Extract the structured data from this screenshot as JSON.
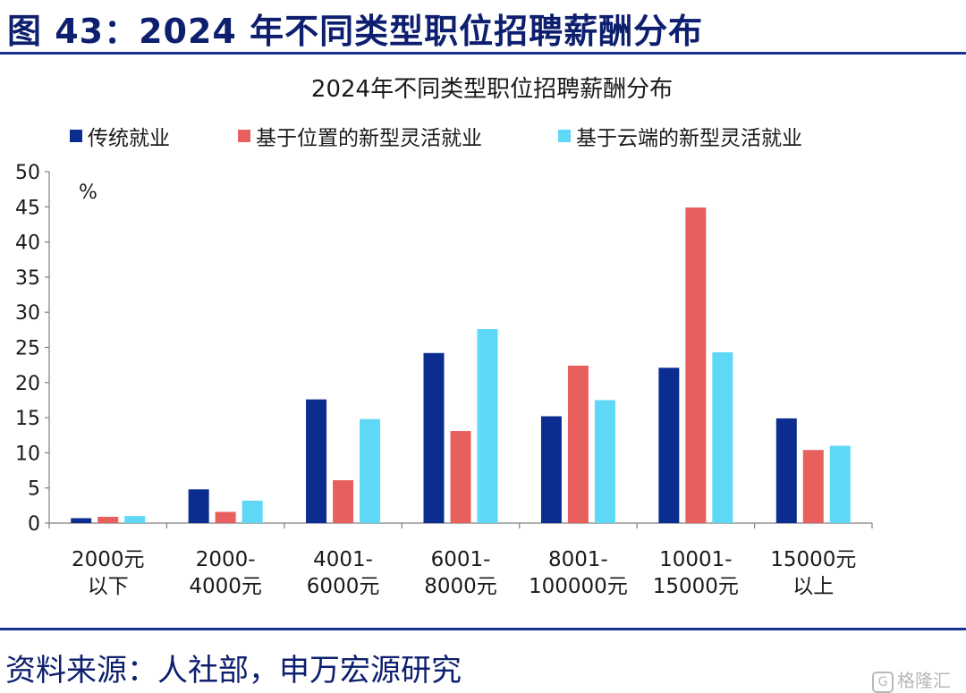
{
  "figure": {
    "label": "图 43：2024 年不同类型职位招聘薪酬分布",
    "source": "资料来源：人社部，申万宏源研究",
    "watermark": "格隆汇"
  },
  "chart_data": {
    "type": "bar",
    "title": "2024年不同类型职位招聘薪酬分布",
    "ylabel": "%",
    "xlabel": "",
    "ylim": [
      0,
      50
    ],
    "yticks": [
      0,
      5,
      10,
      15,
      20,
      25,
      30,
      35,
      40,
      45,
      50
    ],
    "legend_position": "top",
    "grid": false,
    "categories": [
      [
        "2000元",
        "以下"
      ],
      [
        "2000-",
        "4000元"
      ],
      [
        "4001-",
        "6000元"
      ],
      [
        "6001-",
        "8000元"
      ],
      [
        "8001-",
        "100000元"
      ],
      [
        "10001-",
        "15000元"
      ],
      [
        "15000元",
        "以上"
      ]
    ],
    "series": [
      {
        "name": "传统就业",
        "color": "#0a2d8f",
        "values": [
          0.7,
          4.8,
          17.6,
          24.2,
          15.2,
          22.1,
          14.9
        ]
      },
      {
        "name": "基于位置的新型灵活就业",
        "color": "#e8605e",
        "values": [
          0.9,
          1.6,
          6.1,
          13.1,
          22.4,
          44.9,
          10.4
        ]
      },
      {
        "name": "基于云端的新型灵活就业",
        "color": "#5fd7f7",
        "values": [
          1.0,
          3.2,
          14.8,
          27.6,
          17.5,
          24.3,
          11.0
        ]
      }
    ]
  }
}
